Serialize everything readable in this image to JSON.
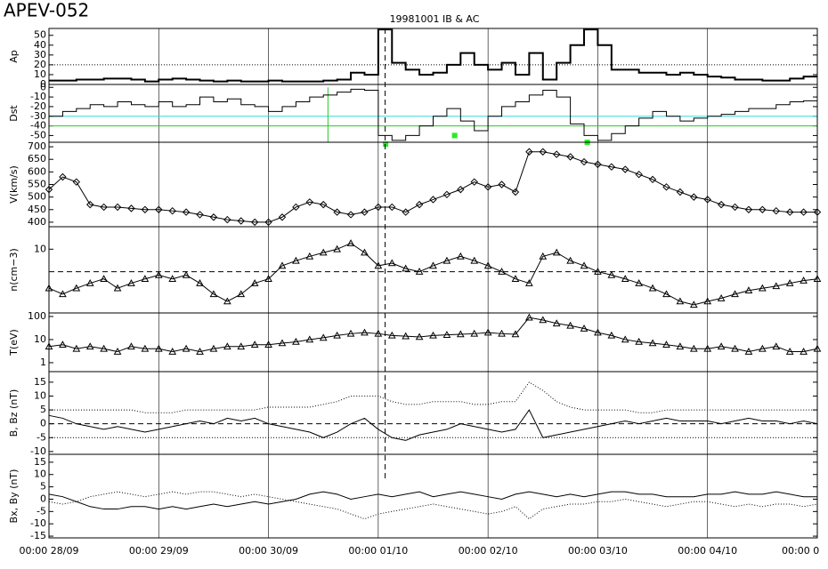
{
  "page_title": "APEV-052",
  "plot_title": "19981001 IB & AC",
  "event_lines": [
    73.5
  ],
  "chart_data": [
    {
      "type": "step",
      "ylabel": "Ap",
      "ylim": [
        0,
        57
      ],
      "yticks": [
        0,
        10,
        20,
        30,
        40,
        50
      ],
      "reference_lines": [
        {
          "value": 20,
          "color": "#000000",
          "dash": "dotted"
        }
      ],
      "x": [
        0,
        3,
        6,
        9,
        12,
        15,
        18,
        21,
        24,
        27,
        30,
        33,
        36,
        39,
        42,
        45,
        48,
        51,
        54,
        57,
        60,
        63,
        66,
        69,
        72,
        75,
        78,
        81,
        84,
        87,
        90,
        93,
        96,
        99,
        102,
        105,
        108,
        111,
        114,
        117,
        120,
        123,
        126,
        129,
        132,
        135,
        138,
        141,
        144,
        147,
        150,
        153,
        156,
        159,
        162,
        165
      ],
      "series": [
        {
          "color": "#000000",
          "style": "solid",
          "width": 2,
          "values": [
            4,
            4,
            5,
            5,
            6,
            6,
            5,
            3,
            5,
            6,
            5,
            4,
            3,
            4,
            3,
            3,
            4,
            3,
            3,
            3,
            4,
            5,
            12,
            10,
            56,
            22,
            15,
            10,
            12,
            20,
            32,
            20,
            15,
            22,
            10,
            32,
            5,
            22,
            40,
            56,
            40,
            15,
            15,
            12,
            12,
            10,
            12,
            10,
            8,
            7,
            5,
            5,
            4,
            4,
            6,
            8
          ]
        }
      ]
    },
    {
      "type": "step",
      "ylabel": "Dst",
      "ylim": [
        -57,
        3
      ],
      "yticks": [
        0,
        -10,
        -20,
        -30,
        -40,
        -50
      ],
      "reference_lines": [
        {
          "value": -30,
          "color": "#33dddd",
          "dash": "solid"
        },
        {
          "value": -40,
          "color": "#22cc22",
          "dash": "solid"
        }
      ],
      "vline_x": 61,
      "vline_color": "#22cc22",
      "storm_markers": {
        "x": [
          73.6,
          88.7,
          117.7
        ],
        "values": [
          -59,
          -50,
          -57
        ],
        "color": "#22ee22"
      },
      "x": [
        0,
        3,
        6,
        9,
        12,
        15,
        18,
        21,
        24,
        27,
        30,
        33,
        36,
        39,
        42,
        45,
        48,
        51,
        54,
        57,
        60,
        63,
        66,
        69,
        72,
        75,
        78,
        81,
        84,
        87,
        90,
        93,
        96,
        99,
        102,
        105,
        108,
        111,
        114,
        117,
        120,
        123,
        126,
        129,
        132,
        135,
        138,
        141,
        144,
        147,
        150,
        153,
        156,
        159,
        162,
        165
      ],
      "series": [
        {
          "color": "#000000",
          "style": "solid",
          "width": 1,
          "values": [
            -30,
            -25,
            -22,
            -18,
            -20,
            -15,
            -18,
            -20,
            -15,
            -20,
            -18,
            -10,
            -15,
            -12,
            -18,
            -20,
            -25,
            -20,
            -15,
            -10,
            -8,
            -5,
            -2,
            -3,
            -50,
            -55,
            -50,
            -40,
            -30,
            -22,
            -35,
            -45,
            -30,
            -20,
            -15,
            -8,
            -3,
            -10,
            -38,
            -50,
            -55,
            -48,
            -40,
            -32,
            -25,
            -30,
            -35,
            -32,
            -30,
            -28,
            -25,
            -22,
            -22,
            -18,
            -15,
            -14
          ]
        }
      ]
    },
    {
      "type": "line",
      "ylabel": "V(km/s)",
      "ylim": [
        382,
        718
      ],
      "yticks": [
        400,
        450,
        500,
        550,
        600,
        650,
        700
      ],
      "x": [
        0,
        3,
        6,
        9,
        12,
        15,
        18,
        21,
        24,
        27,
        30,
        33,
        36,
        39,
        42,
        45,
        48,
        51,
        54,
        57,
        60,
        63,
        66,
        69,
        72,
        75,
        78,
        81,
        84,
        87,
        90,
        93,
        96,
        99,
        102,
        105,
        108,
        111,
        114,
        117,
        120,
        123,
        126,
        129,
        132,
        135,
        138,
        141,
        144,
        147,
        150,
        153,
        156,
        159,
        162,
        165,
        168
      ],
      "series": [
        {
          "color": "#000000",
          "style": "solid",
          "marker": "diamond",
          "values": [
            530,
            580,
            560,
            470,
            460,
            460,
            455,
            450,
            450,
            445,
            440,
            430,
            420,
            410,
            405,
            400,
            400,
            420,
            460,
            480,
            470,
            440,
            430,
            440,
            460,
            460,
            440,
            470,
            490,
            510,
            530,
            560,
            540,
            550,
            520,
            680,
            680,
            670,
            660,
            640,
            630,
            620,
            610,
            590,
            570,
            540,
            520,
            500,
            490,
            470,
            460,
            450,
            450,
            445,
            440,
            440,
            440
          ]
        }
      ]
    },
    {
      "type": "line",
      "ylabel": "n(cm−3)",
      "log": true,
      "ylim": [
        1.4,
        20
      ],
      "yticks": [
        10
      ],
      "reference_lines": [
        {
          "value": 5,
          "color": "#000000",
          "dash": "dashed"
        }
      ],
      "x": [
        0,
        3,
        6,
        9,
        12,
        15,
        18,
        21,
        24,
        27,
        30,
        33,
        36,
        39,
        42,
        45,
        48,
        51,
        54,
        57,
        60,
        63,
        66,
        69,
        72,
        75,
        78,
        81,
        84,
        87,
        90,
        93,
        96,
        99,
        102,
        105,
        108,
        111,
        114,
        117,
        120,
        123,
        126,
        129,
        132,
        135,
        138,
        141,
        144,
        147,
        150,
        153,
        156,
        159,
        162,
        165,
        168
      ],
      "series": [
        {
          "color": "#000000",
          "style": "solid",
          "marker": "triangle",
          "values": [
            3,
            2.5,
            3,
            3.5,
            4,
            3,
            3.5,
            4,
            4.5,
            4,
            4.5,
            3.5,
            2.5,
            2,
            2.5,
            3.5,
            4,
            6,
            7,
            8,
            9,
            10,
            12,
            9,
            6,
            6.5,
            5.5,
            5,
            6,
            7,
            8,
            7,
            6,
            5,
            4,
            3.5,
            8,
            9,
            7,
            6,
            5,
            4.5,
            4,
            3.5,
            3,
            2.5,
            2,
            1.8,
            2,
            2.2,
            2.5,
            2.8,
            3,
            3.2,
            3.5,
            3.8,
            4
          ]
        }
      ]
    },
    {
      "type": "line",
      "ylabel": "T(eV)",
      "log": true,
      "ylim": [
        0.41,
        142
      ],
      "yticks": [
        1,
        10,
        100
      ],
      "x": [
        0,
        3,
        6,
        9,
        12,
        15,
        18,
        21,
        24,
        27,
        30,
        33,
        36,
        39,
        42,
        45,
        48,
        51,
        54,
        57,
        60,
        63,
        66,
        69,
        72,
        75,
        78,
        81,
        84,
        87,
        90,
        93,
        96,
        99,
        102,
        105,
        108,
        111,
        114,
        117,
        120,
        123,
        126,
        129,
        132,
        135,
        138,
        141,
        144,
        147,
        150,
        153,
        156,
        159,
        162,
        165,
        168
      ],
      "series": [
        {
          "color": "#000000",
          "style": "solid",
          "marker": "triangle",
          "values": [
            5,
            6,
            4,
            5,
            4,
            3,
            5,
            4,
            4,
            3,
            4,
            3,
            4,
            5,
            5,
            6,
            6,
            7,
            8,
            10,
            12,
            15,
            18,
            20,
            18,
            15,
            14,
            13,
            15,
            16,
            17,
            18,
            20,
            18,
            17,
            90,
            70,
            50,
            40,
            30,
            20,
            15,
            10,
            8,
            7,
            6,
            5,
            4,
            4,
            5,
            4,
            3,
            4,
            5,
            3,
            3,
            4
          ]
        }
      ]
    },
    {
      "type": "line",
      "ylabel": "B, Bz (nT)",
      "ylim": [
        -11,
        18.8
      ],
      "yticks": [
        -10,
        -5,
        0,
        5,
        10,
        15
      ],
      "reference_lines": [
        {
          "value": 0,
          "color": "#000000",
          "dash": "dashed"
        },
        {
          "value": -5,
          "color": "#000000",
          "dash": "dotted"
        }
      ],
      "x": [
        0,
        3,
        6,
        9,
        12,
        15,
        18,
        21,
        24,
        27,
        30,
        33,
        36,
        39,
        42,
        45,
        48,
        51,
        54,
        57,
        60,
        63,
        66,
        69,
        72,
        75,
        78,
        81,
        84,
        87,
        90,
        93,
        96,
        99,
        102,
        105,
        108,
        111,
        114,
        117,
        120,
        123,
        126,
        129,
        132,
        135,
        138,
        141,
        144,
        147,
        150,
        153,
        156,
        159,
        162,
        165,
        168
      ],
      "series": [
        {
          "color": "#000000",
          "style": "dotted",
          "values": [
            5,
            5,
            5,
            5,
            5,
            5,
            5,
            4,
            4,
            4,
            5,
            5,
            5,
            5,
            5,
            5,
            6,
            6,
            6,
            6,
            7,
            8,
            10,
            10,
            10,
            8,
            7,
            7,
            8,
            8,
            8,
            7,
            7,
            8,
            8,
            15,
            12,
            8,
            6,
            5,
            5,
            5,
            5,
            4,
            4,
            5,
            5,
            5,
            5,
            5,
            5,
            5,
            5,
            5,
            5,
            5,
            5
          ]
        },
        {
          "color": "#000000",
          "style": "solid",
          "values": [
            3,
            2,
            0,
            -1,
            -2,
            -1,
            -2,
            -3,
            -2,
            -1,
            0,
            1,
            0,
            2,
            1,
            2,
            0,
            -1,
            -2,
            -3,
            -5,
            -3,
            0,
            2,
            -2,
            -5,
            -6,
            -4,
            -3,
            -2,
            0,
            -1,
            -2,
            -3,
            -2,
            5,
            -5,
            -4,
            -3,
            -2,
            -1,
            0,
            1,
            0,
            1,
            2,
            1,
            1,
            1,
            0,
            1,
            2,
            1,
            1,
            0,
            1,
            0
          ]
        }
      ]
    },
    {
      "type": "line",
      "ylabel": "Bx, By (nT)",
      "ylim": [
        -15.7,
        18.2
      ],
      "yticks": [
        -15,
        -10,
        -5,
        0,
        5,
        10,
        15
      ],
      "xlim": [
        0,
        168
      ],
      "xticks": [
        {
          "value": 0,
          "label": "00:00 28/09"
        },
        {
          "value": 24,
          "label": "00:00 29/09"
        },
        {
          "value": 48,
          "label": "00:00 30/09"
        },
        {
          "value": 72,
          "label": "00:00 01/10"
        },
        {
          "value": 96,
          "label": "00:00 02/10"
        },
        {
          "value": 120,
          "label": "00:00 03/10"
        },
        {
          "value": 144,
          "label": "00:00 04/10"
        },
        {
          "value": 168,
          "label": "00:00 0"
        }
      ],
      "x": [
        0,
        3,
        6,
        9,
        12,
        15,
        18,
        21,
        24,
        27,
        30,
        33,
        36,
        39,
        42,
        45,
        48,
        51,
        54,
        57,
        60,
        63,
        66,
        69,
        72,
        75,
        78,
        81,
        84,
        87,
        90,
        93,
        96,
        99,
        102,
        105,
        108,
        111,
        114,
        117,
        120,
        123,
        126,
        129,
        132,
        135,
        138,
        141,
        144,
        147,
        150,
        153,
        156,
        159,
        162,
        165,
        168
      ],
      "series": [
        {
          "color": "#000000",
          "style": "solid",
          "values": [
            2,
            1,
            -1,
            -3,
            -4,
            -4,
            -3,
            -3,
            -4,
            -3,
            -4,
            -3,
            -2,
            -3,
            -2,
            -1,
            -2,
            -1,
            0,
            2,
            3,
            2,
            0,
            1,
            2,
            1,
            2,
            3,
            1,
            2,
            3,
            2,
            1,
            0,
            2,
            3,
            2,
            1,
            2,
            1,
            2,
            3,
            3,
            2,
            2,
            1,
            1,
            1,
            2,
            2,
            3,
            2,
            2,
            3,
            2,
            1,
            1
          ]
        },
        {
          "color": "#000000",
          "style": "dotted",
          "values": [
            -1,
            -2,
            -1,
            1,
            2,
            3,
            2,
            1,
            2,
            3,
            2,
            3,
            3,
            2,
            1,
            2,
            1,
            0,
            -1,
            -2,
            -3,
            -4,
            -6,
            -8,
            -6,
            -5,
            -4,
            -3,
            -2,
            -3,
            -4,
            -5,
            -6,
            -5,
            -3,
            -8,
            -4,
            -3,
            -2,
            -2,
            -1,
            -1,
            0,
            -1,
            -2,
            -3,
            -2,
            -1,
            -1,
            -2,
            -3,
            -2,
            -3,
            -2,
            -2,
            -3,
            -2
          ]
        }
      ]
    }
  ]
}
